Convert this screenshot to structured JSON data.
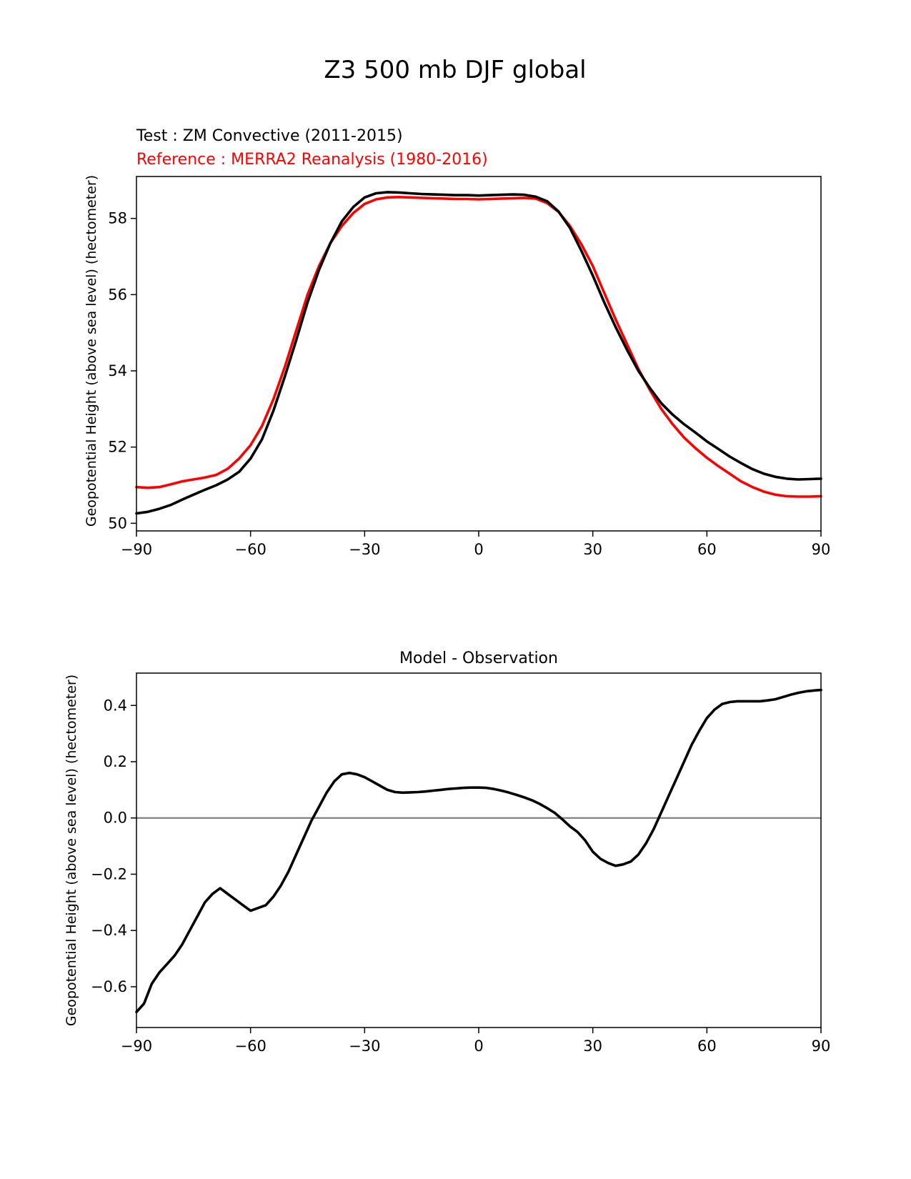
{
  "figure": {
    "title": "Z3 500 mb DJF global"
  },
  "colors": {
    "test": "#000000",
    "reference": "#ff0000",
    "zero_line": "#808080",
    "axes": "#000000"
  },
  "chart_data": [
    {
      "type": "line",
      "title": "",
      "test_label": "Test : ZM Convective (2011-2015)",
      "reference_label": "Reference : MERRA2 Reanalysis (1980-2016)",
      "xlabel": "",
      "ylabel": "Geopotential Height (above sea level) (hectometer)",
      "xlim": [
        -90,
        90
      ],
      "ylim": [
        49.8,
        59.1
      ],
      "xticks": [
        -90,
        -60,
        -30,
        0,
        30,
        60,
        90
      ],
      "xtick_labels": [
        "−90",
        "−60",
        "−30",
        "0",
        "30",
        "60",
        "90"
      ],
      "yticks": [
        50,
        52,
        54,
        56,
        58
      ],
      "ytick_labels": [
        "50",
        "52",
        "54",
        "56",
        "58"
      ],
      "series": [
        {
          "name": "Test : ZM Convective (2011-2015)",
          "color": "#000000",
          "x": [
            -90,
            -87,
            -84,
            -81,
            -78,
            -75,
            -72,
            -69,
            -66,
            -63,
            -60,
            -57,
            -54,
            -51,
            -48,
            -45,
            -42,
            -39,
            -36,
            -33,
            -30,
            -27,
            -24,
            -21,
            -18,
            -15,
            -12,
            -9,
            -6,
            -3,
            0,
            3,
            6,
            9,
            12,
            15,
            18,
            21,
            24,
            27,
            30,
            33,
            36,
            39,
            42,
            45,
            48,
            51,
            54,
            57,
            60,
            63,
            66,
            69,
            72,
            75,
            78,
            81,
            84,
            87,
            90
          ],
          "values": [
            50.26,
            50.3,
            50.38,
            50.48,
            50.62,
            50.75,
            50.88,
            51.0,
            51.15,
            51.35,
            51.7,
            52.2,
            52.95,
            53.85,
            54.8,
            55.8,
            56.65,
            57.35,
            57.92,
            58.3,
            58.55,
            58.66,
            58.69,
            58.68,
            58.66,
            58.64,
            58.63,
            58.62,
            58.61,
            58.61,
            58.6,
            58.61,
            58.62,
            58.63,
            58.62,
            58.57,
            58.45,
            58.18,
            57.75,
            57.15,
            56.5,
            55.8,
            55.15,
            54.55,
            54.0,
            53.55,
            53.15,
            52.85,
            52.6,
            52.38,
            52.15,
            51.95,
            51.75,
            51.58,
            51.42,
            51.3,
            51.22,
            51.17,
            51.15,
            51.16,
            51.17
          ]
        },
        {
          "name": "Reference : MERRA2 Reanalysis (1980-2016)",
          "color": "#ff0000",
          "x": [
            -90,
            -87,
            -84,
            -81,
            -78,
            -75,
            -72,
            -69,
            -66,
            -63,
            -60,
            -57,
            -54,
            -51,
            -48,
            -45,
            -42,
            -39,
            -36,
            -33,
            -30,
            -27,
            -24,
            -21,
            -18,
            -15,
            -12,
            -9,
            -6,
            -3,
            0,
            3,
            6,
            9,
            12,
            15,
            18,
            21,
            24,
            27,
            30,
            33,
            36,
            39,
            42,
            45,
            48,
            51,
            54,
            57,
            60,
            63,
            66,
            69,
            72,
            75,
            78,
            81,
            84,
            87,
            90
          ],
          "values": [
            50.95,
            50.93,
            50.95,
            51.02,
            51.1,
            51.15,
            51.2,
            51.27,
            51.43,
            51.7,
            52.05,
            52.55,
            53.25,
            54.1,
            55.05,
            56.0,
            56.75,
            57.35,
            57.8,
            58.14,
            58.38,
            58.5,
            58.55,
            58.56,
            58.55,
            58.54,
            58.53,
            58.52,
            58.51,
            58.51,
            58.5,
            58.51,
            58.52,
            58.53,
            58.54,
            58.52,
            58.4,
            58.17,
            57.8,
            57.32,
            56.75,
            56.05,
            55.35,
            54.7,
            54.05,
            53.5,
            53.0,
            52.6,
            52.25,
            51.97,
            51.72,
            51.5,
            51.3,
            51.1,
            50.95,
            50.83,
            50.75,
            50.71,
            50.7,
            50.7,
            50.71
          ]
        }
      ]
    },
    {
      "type": "line",
      "title": "Model - Observation",
      "xlabel": "",
      "ylabel": "Geopotential Height (above sea level) (hectometer)",
      "xlim": [
        -90,
        90
      ],
      "ylim": [
        -0.745,
        0.515
      ],
      "xticks": [
        -90,
        -60,
        -30,
        0,
        30,
        60,
        90
      ],
      "xtick_labels": [
        "−90",
        "−60",
        "−30",
        "0",
        "30",
        "60",
        "90"
      ],
      "yticks": [
        -0.6,
        -0.4,
        -0.2,
        0.0,
        0.2,
        0.4
      ],
      "ytick_labels": [
        "−0.6",
        "−0.4",
        "−0.2",
        "0.0",
        "0.2",
        "0.4"
      ],
      "zero_line": 0.0,
      "series": [
        {
          "name": "Model - Observation",
          "color": "#000000",
          "x": [
            -90,
            -88,
            -86,
            -84,
            -82,
            -80,
            -78,
            -76,
            -74,
            -72,
            -70,
            -68,
            -66,
            -64,
            -62,
            -60,
            -58,
            -56,
            -54,
            -52,
            -50,
            -48,
            -46,
            -44,
            -42,
            -40,
            -38,
            -36,
            -34,
            -32,
            -30,
            -28,
            -26,
            -24,
            -22,
            -20,
            -18,
            -16,
            -14,
            -12,
            -10,
            -8,
            -6,
            -4,
            -2,
            0,
            2,
            4,
            6,
            8,
            10,
            12,
            14,
            16,
            18,
            20,
            22,
            24,
            26,
            28,
            30,
            32,
            34,
            36,
            38,
            40,
            42,
            44,
            46,
            48,
            50,
            52,
            54,
            56,
            58,
            60,
            62,
            64,
            66,
            68,
            70,
            72,
            74,
            76,
            78,
            80,
            82,
            84,
            86,
            88,
            90
          ],
          "values": [
            -0.69,
            -0.66,
            -0.59,
            -0.55,
            -0.52,
            -0.49,
            -0.45,
            -0.4,
            -0.35,
            -0.3,
            -0.27,
            -0.25,
            -0.27,
            -0.29,
            -0.31,
            -0.33,
            -0.32,
            -0.31,
            -0.28,
            -0.24,
            -0.19,
            -0.13,
            -0.07,
            -0.01,
            0.04,
            0.09,
            0.13,
            0.155,
            0.16,
            0.155,
            0.145,
            0.13,
            0.115,
            0.1,
            0.092,
            0.09,
            0.091,
            0.092,
            0.094,
            0.097,
            0.1,
            0.103,
            0.105,
            0.107,
            0.108,
            0.108,
            0.107,
            0.103,
            0.097,
            0.09,
            0.082,
            0.073,
            0.063,
            0.05,
            0.035,
            0.018,
            -0.005,
            -0.03,
            -0.05,
            -0.08,
            -0.12,
            -0.145,
            -0.16,
            -0.17,
            -0.165,
            -0.155,
            -0.13,
            -0.09,
            -0.04,
            0.02,
            0.08,
            0.14,
            0.2,
            0.26,
            0.31,
            0.355,
            0.385,
            0.405,
            0.412,
            0.415,
            0.415,
            0.415,
            0.415,
            0.418,
            0.422,
            0.43,
            0.438,
            0.445,
            0.45,
            0.453,
            0.455
          ]
        }
      ]
    }
  ]
}
